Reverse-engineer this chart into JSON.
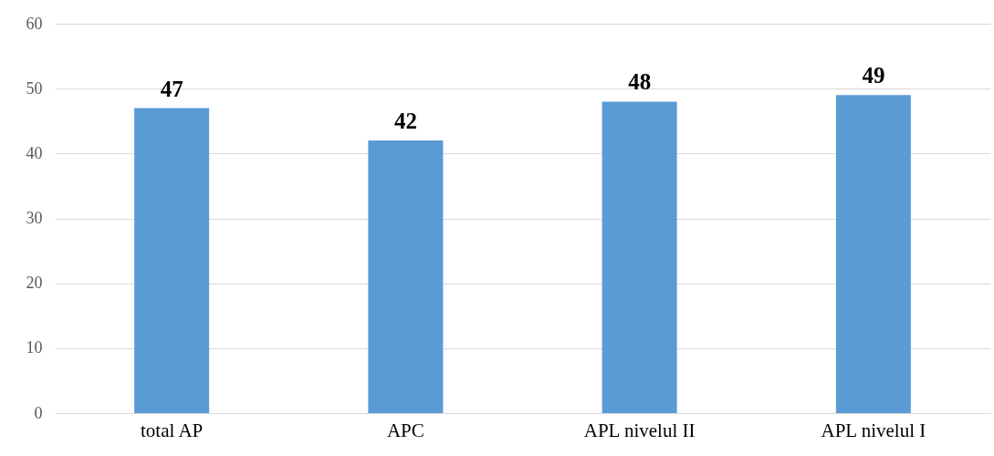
{
  "chart_data": {
    "type": "bar",
    "categories": [
      "total AP",
      "APC",
      "APL nivelul II",
      "APL nivelul I"
    ],
    "values": [
      47,
      42,
      48,
      49
    ],
    "color": "#5b9bd5",
    "ylim": [
      0,
      60
    ],
    "yticks": [
      0,
      10,
      20,
      30,
      40,
      50,
      60
    ],
    "grid": "y",
    "data_labels": true
  }
}
